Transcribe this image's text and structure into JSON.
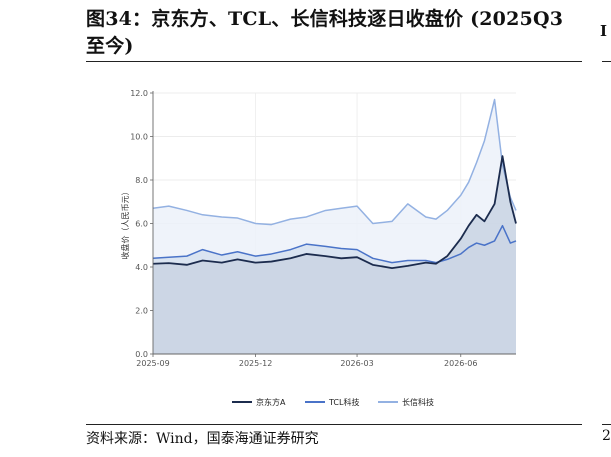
{
  "figure": {
    "title": "图34：京东方、TCL、长信科技逐日收盘价 (2025Q3至今)",
    "source": "资料来源：Wind，国泰海通证券研究",
    "right_fragment": "I",
    "right_foot": "2"
  },
  "chart_data": {
    "type": "area",
    "title": "",
    "xlabel": "",
    "ylabel": "收盘价（人民币元）",
    "ylim": [
      0,
      12
    ],
    "yticks": [
      "0.0",
      "2.0",
      "4.0",
      "6.0",
      "8.0",
      "10.0",
      "12.0"
    ],
    "xticks": [
      "2025-09",
      "2025-12",
      "2026-03",
      "2026-06"
    ],
    "x_range": [
      "2025-09-01",
      "2026-07-20"
    ],
    "grid": true,
    "legend_position": "bottom",
    "x": [
      "2025-09-01",
      "2025-09-15",
      "2025-10-01",
      "2025-10-15",
      "2025-11-01",
      "2025-11-15",
      "2025-12-01",
      "2025-12-15",
      "2026-01-01",
      "2026-01-15",
      "2026-02-01",
      "2026-02-15",
      "2026-03-01",
      "2026-03-15",
      "2026-04-01",
      "2026-04-15",
      "2026-05-01",
      "2026-05-10",
      "2026-05-20",
      "2026-06-01",
      "2026-06-08",
      "2026-06-15",
      "2026-06-22",
      "2026-07-01",
      "2026-07-08",
      "2026-07-15",
      "2026-07-20"
    ],
    "series": [
      {
        "name": "京东方A",
        "color": "#1c2c4e",
        "values": [
          4.15,
          4.18,
          4.1,
          4.3,
          4.2,
          4.35,
          4.2,
          4.25,
          4.4,
          4.6,
          4.5,
          4.4,
          4.45,
          4.1,
          3.95,
          4.05,
          4.2,
          4.15,
          4.5,
          5.3,
          5.9,
          6.4,
          6.1,
          6.9,
          9.1,
          7.0,
          6.0
        ]
      },
      {
        "name": "TCL科技",
        "color": "#4a73c8",
        "values": [
          4.4,
          4.45,
          4.5,
          4.8,
          4.55,
          4.7,
          4.5,
          4.6,
          4.8,
          5.05,
          4.95,
          4.85,
          4.8,
          4.4,
          4.2,
          4.3,
          4.3,
          4.2,
          4.35,
          4.6,
          4.9,
          5.1,
          5.0,
          5.2,
          5.9,
          5.1,
          5.2
        ]
      },
      {
        "name": "长信科技",
        "color": "#93b1e2",
        "values": [
          6.7,
          6.8,
          6.6,
          6.4,
          6.3,
          6.25,
          6.0,
          5.95,
          6.2,
          6.3,
          6.6,
          6.7,
          6.8,
          6.0,
          6.1,
          6.9,
          6.3,
          6.2,
          6.6,
          7.3,
          7.9,
          8.8,
          9.8,
          11.7,
          8.7,
          7.2,
          6.6
        ]
      }
    ]
  }
}
